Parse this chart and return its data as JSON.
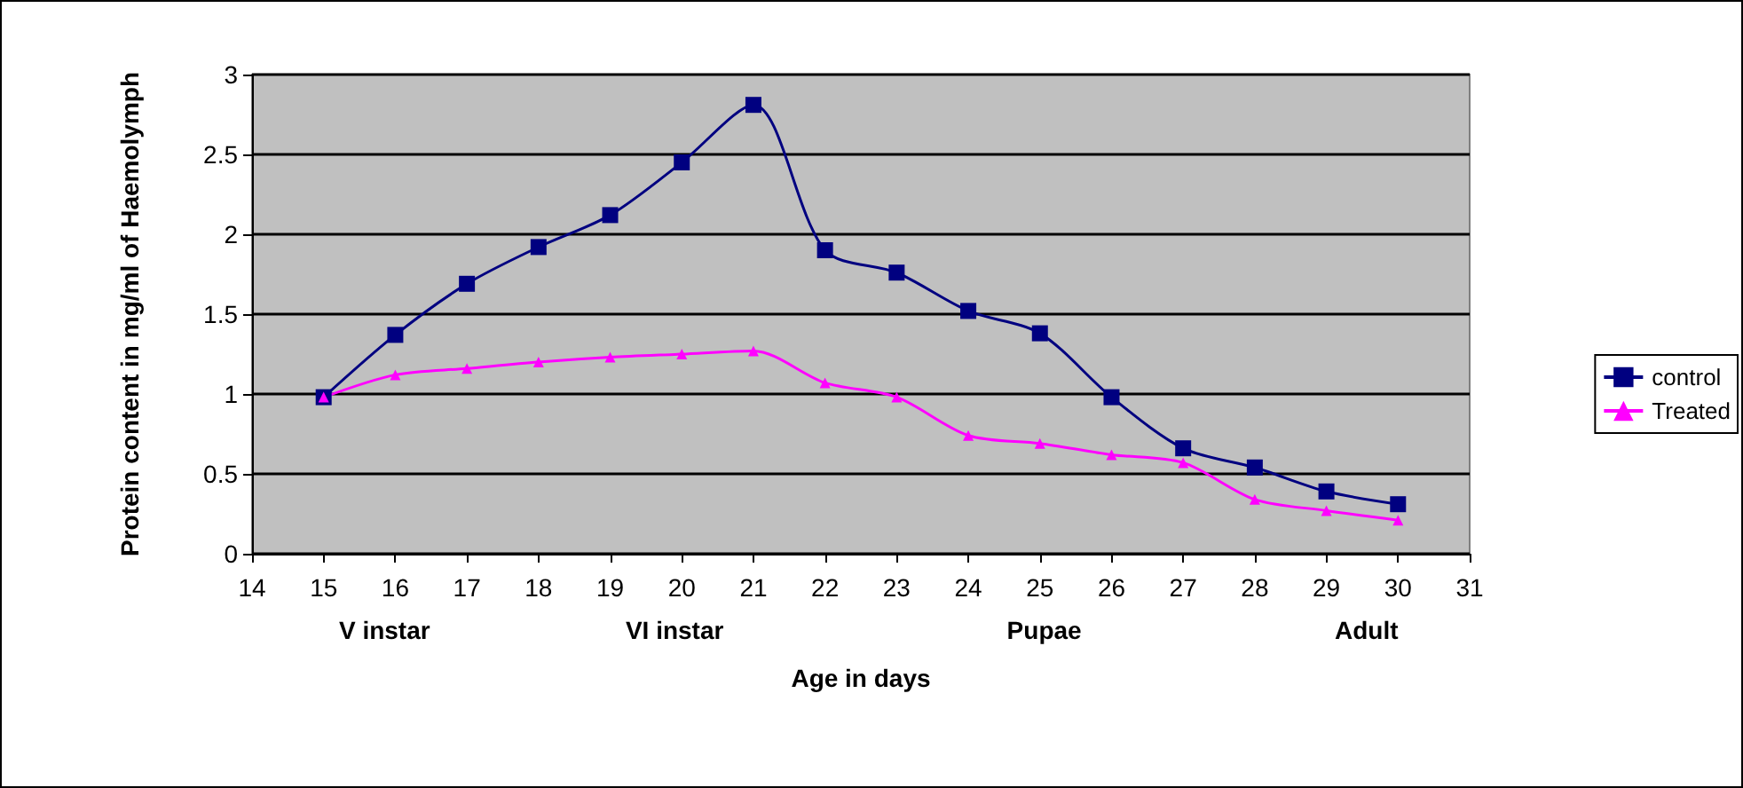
{
  "chart_data": {
    "type": "line",
    "xlabel": "Age in days",
    "ylabel": "Protein content in mg/ml of Haemolymph",
    "x": [
      15,
      16,
      17,
      18,
      19,
      20,
      21,
      22,
      23,
      24,
      25,
      26,
      27,
      28,
      29,
      30
    ],
    "series": [
      {
        "name": "control",
        "color": "#000080",
        "marker": "square",
        "values": [
          0.98,
          1.37,
          1.69,
          1.92,
          2.12,
          2.45,
          2.81,
          1.9,
          1.76,
          1.52,
          1.38,
          0.98,
          0.66,
          0.54,
          0.39,
          0.31
        ]
      },
      {
        "name": "Treated",
        "color": "#ff00ff",
        "marker": "triangle",
        "values": [
          0.98,
          1.12,
          1.16,
          1.2,
          1.23,
          1.25,
          1.27,
          1.07,
          0.98,
          0.74,
          0.69,
          0.62,
          0.57,
          0.34,
          0.27,
          0.21
        ]
      }
    ],
    "xlim": [
      14,
      31
    ],
    "xticks": [
      14,
      15,
      16,
      17,
      18,
      19,
      20,
      21,
      22,
      23,
      24,
      25,
      26,
      27,
      28,
      29,
      30,
      31
    ],
    "ylim": [
      0,
      3
    ],
    "yticks": [
      0,
      0.5,
      1,
      1.5,
      2,
      2.5,
      3
    ],
    "grid": "y",
    "legend": "right",
    "annotations": [
      "V instar",
      "VI instar",
      "Pupae",
      "Adult"
    ]
  }
}
